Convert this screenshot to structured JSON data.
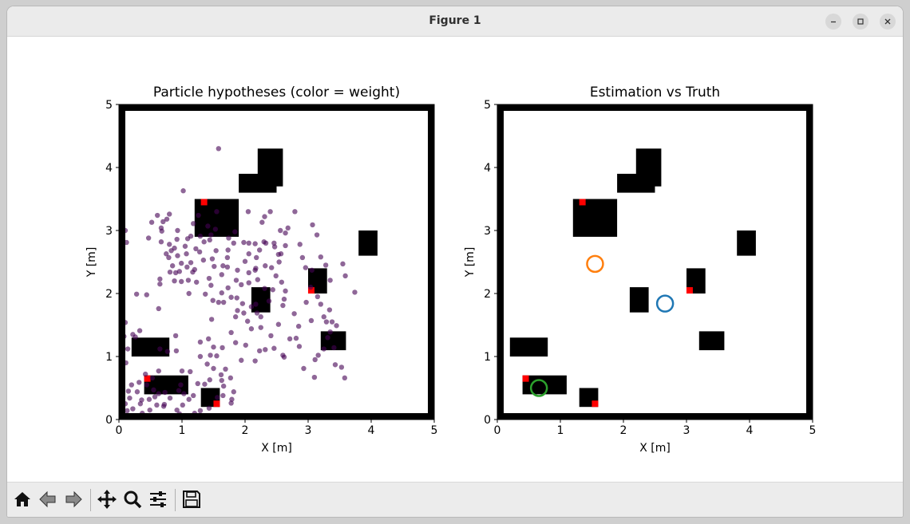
{
  "window": {
    "title": "Figure 1"
  },
  "toolbar": [
    {
      "name": "home-button",
      "icon": "home-icon"
    },
    {
      "name": "back-button",
      "icon": "back-arrow-icon"
    },
    {
      "name": "forward-button",
      "icon": "forward-arrow-icon"
    },
    {
      "name": "pan-button",
      "icon": "pan-arrows-icon"
    },
    {
      "name": "zoom-button",
      "icon": "magnifier-icon"
    },
    {
      "name": "configure-subplots-button",
      "icon": "sliders-icon"
    },
    {
      "name": "save-button",
      "icon": "floppy-disk-icon"
    }
  ],
  "colors": {
    "wall": "#000000",
    "landmark": "#ff0000",
    "particle": "#440154",
    "estimate": "#1f77b4",
    "alternate": "#ff7f0e",
    "truth": "#2ca02c"
  },
  "chart_data": [
    {
      "type": "scatter",
      "title": "Particle hypotheses (color = weight)",
      "xlabel": "X [m]",
      "ylabel": "Y [m]",
      "xlim": [
        0,
        5
      ],
      "ylim": [
        0,
        5
      ],
      "xticks": [
        "0",
        "1",
        "2",
        "3",
        "4",
        "5"
      ],
      "yticks": [
        "0",
        "1",
        "2",
        "3",
        "4",
        "5"
      ],
      "obstacles": [
        {
          "x0": 2.2,
          "x1": 2.6,
          "y0": 3.7,
          "y1": 4.3
        },
        {
          "x0": 1.9,
          "x1": 2.5,
          "y0": 3.6,
          "y1": 3.9
        },
        {
          "x0": 1.2,
          "x1": 1.9,
          "y0": 2.9,
          "y1": 3.5
        },
        {
          "x0": 3.8,
          "x1": 4.1,
          "y0": 2.6,
          "y1": 3.0
        },
        {
          "x0": 3.0,
          "x1": 3.3,
          "y0": 2.0,
          "y1": 2.4
        },
        {
          "x0": 2.1,
          "x1": 2.4,
          "y0": 1.7,
          "y1": 2.1
        },
        {
          "x0": 3.2,
          "x1": 3.6,
          "y0": 1.1,
          "y1": 1.4
        },
        {
          "x0": 0.2,
          "x1": 0.8,
          "y0": 1.0,
          "y1": 1.3
        },
        {
          "x0": 0.4,
          "x1": 1.1,
          "y0": 0.4,
          "y1": 0.7
        },
        {
          "x0": 1.3,
          "x1": 1.6,
          "y0": 0.2,
          "y1": 0.5
        }
      ],
      "landmarks": [
        {
          "x": 1.35,
          "y": 3.45
        },
        {
          "x": 3.05,
          "y": 2.05
        },
        {
          "x": 0.45,
          "y": 0.65
        },
        {
          "x": 1.55,
          "y": 0.25
        }
      ],
      "particles": [
        [
          1.58,
          4.3
        ],
        [
          1.53,
          3.02
        ],
        [
          0.47,
          2.88
        ],
        [
          1.14,
          2.91
        ],
        [
          0.61,
          3.24
        ],
        [
          1.18,
          3.11
        ],
        [
          0.52,
          3.13
        ],
        [
          0.67,
          3.04
        ],
        [
          0.1,
          3.0
        ],
        [
          0.12,
          2.81
        ],
        [
          0.68,
          2.99
        ],
        [
          0.7,
          3.14
        ],
        [
          0.76,
          3.18
        ],
        [
          0.8,
          3.26
        ],
        [
          1.02,
          3.63
        ],
        [
          1.55,
          3.3
        ],
        [
          1.26,
          3.24
        ],
        [
          2.27,
          3.13
        ],
        [
          2.56,
          3.0
        ],
        [
          2.68,
          3.04
        ],
        [
          2.31,
          3.22
        ],
        [
          2.4,
          3.3
        ],
        [
          2.79,
          3.3
        ],
        [
          2.64,
          2.96
        ],
        [
          3.07,
          3.09
        ],
        [
          3.14,
          2.93
        ],
        [
          1.82,
          2.8
        ],
        [
          1.98,
          2.81
        ],
        [
          2.06,
          2.8
        ],
        [
          2.3,
          2.82
        ],
        [
          2.46,
          2.8
        ],
        [
          2.87,
          2.78
        ],
        [
          3.55,
          2.47
        ],
        [
          1.74,
          2.88
        ],
        [
          1.46,
          2.93
        ],
        [
          1.35,
          2.82
        ],
        [
          1.29,
          2.91
        ],
        [
          1.09,
          2.87
        ],
        [
          1.05,
          2.75
        ],
        [
          0.92,
          2.86
        ],
        [
          0.8,
          2.78
        ],
        [
          0.67,
          2.82
        ],
        [
          1.07,
          2.63
        ],
        [
          1.14,
          2.49
        ],
        [
          1.08,
          2.42
        ],
        [
          1.17,
          2.34
        ],
        [
          1.28,
          2.66
        ],
        [
          1.48,
          2.55
        ],
        [
          1.51,
          2.43
        ],
        [
          1.63,
          2.3
        ],
        [
          1.72,
          2.42
        ],
        [
          1.88,
          2.37
        ],
        [
          1.86,
          2.21
        ],
        [
          1.73,
          2.09
        ],
        [
          1.63,
          2.01
        ],
        [
          1.43,
          2.24
        ],
        [
          1.23,
          2.18
        ],
        [
          1.1,
          2.21
        ],
        [
          0.88,
          2.2
        ],
        [
          0.81,
          2.34
        ],
        [
          0.65,
          2.23
        ],
        [
          0.79,
          2.57
        ],
        [
          0.83,
          2.68
        ],
        [
          0.93,
          2.6
        ],
        [
          0.99,
          2.48
        ],
        [
          0.96,
          2.35
        ],
        [
          0.99,
          2.19
        ],
        [
          1.11,
          2.0
        ],
        [
          1.37,
          1.99
        ],
        [
          1.49,
          1.89
        ],
        [
          1.58,
          1.86
        ],
        [
          1.66,
          1.86
        ],
        [
          1.78,
          1.94
        ],
        [
          1.87,
          1.93
        ],
        [
          1.96,
          1.84
        ],
        [
          1.88,
          1.73
        ],
        [
          1.85,
          1.63
        ],
        [
          1.78,
          1.38
        ],
        [
          1.98,
          1.69
        ],
        [
          2.1,
          1.79
        ],
        [
          2.17,
          1.83
        ],
        [
          2.19,
          1.69
        ],
        [
          2.04,
          1.56
        ],
        [
          2.25,
          1.63
        ],
        [
          2.38,
          1.88
        ],
        [
          2.44,
          2.06
        ],
        [
          2.58,
          2.18
        ],
        [
          2.64,
          2.04
        ],
        [
          2.62,
          1.91
        ],
        [
          2.31,
          2.08
        ],
        [
          2.2,
          2.22
        ],
        [
          2.16,
          2.37
        ],
        [
          2.06,
          2.33
        ],
        [
          2.0,
          2.51
        ],
        [
          2.06,
          2.63
        ],
        [
          2.18,
          2.57
        ],
        [
          2.17,
          2.4
        ],
        [
          2.32,
          2.44
        ],
        [
          2.42,
          2.41
        ],
        [
          2.49,
          2.28
        ],
        [
          2.54,
          2.5
        ],
        [
          2.57,
          2.63
        ],
        [
          2.64,
          2.76
        ],
        [
          2.53,
          2.62
        ],
        [
          2.47,
          2.74
        ],
        [
          2.33,
          2.8
        ],
        [
          2.23,
          2.69
        ],
        [
          2.16,
          2.79
        ],
        [
          2.91,
          2.57
        ],
        [
          2.96,
          2.41
        ],
        [
          3.06,
          2.37
        ],
        [
          3.28,
          2.45
        ],
        [
          3.35,
          2.21
        ],
        [
          3.15,
          1.95
        ],
        [
          3.2,
          1.83
        ],
        [
          3.34,
          1.74
        ],
        [
          3.25,
          1.63
        ],
        [
          3.29,
          1.55
        ],
        [
          3.38,
          1.55
        ],
        [
          3.45,
          1.49
        ],
        [
          3.35,
          1.39
        ],
        [
          3.31,
          1.3
        ],
        [
          3.41,
          1.14
        ],
        [
          3.25,
          1.12
        ],
        [
          3.16,
          1.02
        ],
        [
          3.11,
          0.95
        ],
        [
          3.43,
          0.87
        ],
        [
          3.53,
          0.83
        ],
        [
          3.58,
          0.66
        ],
        [
          3.1,
          0.67
        ],
        [
          2.93,
          0.81
        ],
        [
          2.86,
          1.16
        ],
        [
          2.81,
          1.29
        ],
        [
          2.71,
          1.28
        ],
        [
          2.85,
          1.48
        ],
        [
          3.05,
          1.57
        ],
        [
          2.97,
          1.86
        ],
        [
          2.78,
          1.68
        ],
        [
          2.6,
          1.81
        ],
        [
          2.53,
          1.51
        ],
        [
          2.41,
          1.33
        ],
        [
          2.25,
          1.46
        ],
        [
          2.1,
          1.44
        ],
        [
          2.01,
          1.18
        ],
        [
          2.23,
          1.09
        ],
        [
          2.32,
          1.11
        ],
        [
          2.46,
          1.13
        ],
        [
          2.6,
          1.02
        ],
        [
          2.62,
          0.99
        ],
        [
          2.16,
          0.93
        ],
        [
          1.94,
          0.94
        ],
        [
          1.85,
          1.22
        ],
        [
          1.64,
          1.14
        ],
        [
          1.5,
          1.15
        ],
        [
          1.42,
          1.28
        ],
        [
          1.29,
          1.23
        ],
        [
          1.29,
          1.0
        ],
        [
          1.4,
          0.88
        ],
        [
          1.5,
          0.81
        ],
        [
          1.62,
          0.71
        ],
        [
          1.77,
          0.66
        ],
        [
          1.82,
          0.44
        ],
        [
          1.66,
          0.53
        ],
        [
          1.65,
          0.38
        ],
        [
          1.79,
          0.32
        ],
        [
          1.44,
          0.63
        ],
        [
          1.25,
          0.57
        ],
        [
          1.13,
          0.76
        ],
        [
          1.0,
          0.77
        ],
        [
          0.91,
          1.09
        ],
        [
          0.77,
          1.08
        ],
        [
          0.65,
          1.12
        ],
        [
          0.63,
          0.77
        ],
        [
          0.53,
          0.66
        ],
        [
          0.42,
          0.72
        ],
        [
          0.32,
          0.59
        ],
        [
          0.29,
          0.44
        ],
        [
          0.36,
          0.31
        ],
        [
          0.48,
          0.32
        ],
        [
          0.57,
          0.36
        ],
        [
          0.63,
          0.41
        ],
        [
          0.73,
          0.43
        ],
        [
          0.81,
          0.34
        ],
        [
          0.72,
          0.24
        ],
        [
          0.6,
          0.23
        ],
        [
          0.49,
          0.15
        ],
        [
          0.37,
          0.1
        ],
        [
          0.22,
          0.17
        ],
        [
          0.13,
          0.14
        ],
        [
          0.1,
          0.25
        ],
        [
          0.17,
          0.34
        ],
        [
          0.15,
          0.45
        ],
        [
          0.2,
          0.55
        ],
        [
          0.11,
          0.9
        ],
        [
          0.14,
          1.12
        ],
        [
          0.26,
          1.31
        ],
        [
          0.33,
          1.41
        ],
        [
          0.22,
          1.35
        ],
        [
          0.08,
          1.32
        ],
        [
          0.1,
          1.54
        ],
        [
          0.06,
          1.7
        ],
        [
          0.63,
          1.76
        ],
        [
          0.9,
          1.33
        ],
        [
          0.98,
          0.55
        ],
        [
          1.03,
          0.41
        ],
        [
          1.11,
          0.32
        ],
        [
          1.01,
          0.23
        ],
        [
          0.92,
          0.15
        ],
        [
          0.96,
          0.09
        ],
        [
          1.05,
          0.05
        ],
        [
          0.82,
          0.06
        ],
        [
          0.67,
          0.06
        ],
        [
          0.55,
          0.05
        ],
        [
          0.43,
          0.05
        ],
        [
          0.29,
          0.06
        ],
        [
          0.18,
          0.06
        ],
        [
          0.06,
          0.06
        ],
        [
          1.2,
          0.1
        ],
        [
          1.29,
          0.14
        ],
        [
          1.43,
          0.18
        ],
        [
          1.56,
          0.35
        ],
        [
          1.78,
          0.26
        ],
        [
          0.71,
          0.21
        ],
        [
          1.69,
          0.8
        ],
        [
          1.63,
          0.62
        ],
        [
          1.36,
          0.56
        ],
        [
          1.18,
          0.38
        ],
        [
          1.45,
          1.02
        ],
        [
          1.55,
          1.01
        ],
        [
          1.47,
          1.59
        ],
        [
          0.65,
          2.15
        ],
        [
          0.85,
          2.44
        ],
        [
          0.9,
          2.33
        ],
        [
          1.22,
          2.71
        ],
        [
          1.44,
          2.85
        ],
        [
          1.72,
          2.57
        ],
        [
          1.73,
          2.69
        ],
        [
          1.94,
          2.14
        ],
        [
          2.06,
          2.17
        ],
        [
          1.65,
          2.44
        ],
        [
          1.46,
          2.13
        ],
        [
          1.2,
          2.38
        ],
        [
          1.34,
          2.53
        ],
        [
          1.54,
          2.68
        ],
        [
          1.84,
          2.98
        ],
        [
          2.05,
          3.3
        ],
        [
          1.41,
          3.07
        ],
        [
          0.93,
          3.0
        ],
        [
          0.88,
          2.72
        ],
        [
          0.75,
          2.63
        ],
        [
          0.44,
          1.98
        ],
        [
          0.28,
          1.99
        ],
        [
          0.55,
          0.47
        ],
        [
          0.44,
          0.55
        ],
        [
          0.34,
          0.25
        ],
        [
          0.95,
          0.46
        ],
        [
          3.74,
          2.02
        ],
        [
          3.2,
          2.58
        ],
        [
          3.04,
          2.1
        ],
        [
          3.59,
          2.28
        ]
      ]
    },
    {
      "type": "scatter",
      "title": "Estimation vs Truth",
      "xlabel": "X [m]",
      "ylabel": "Y [m]",
      "xlim": [
        0,
        5
      ],
      "ylim": [
        0,
        5
      ],
      "xticks": [
        "0",
        "1",
        "2",
        "3",
        "4",
        "5"
      ],
      "yticks": [
        "0",
        "1",
        "2",
        "3",
        "4",
        "5"
      ],
      "obstacles": [
        {
          "x0": 2.2,
          "x1": 2.6,
          "y0": 3.7,
          "y1": 4.3
        },
        {
          "x0": 1.9,
          "x1": 2.5,
          "y0": 3.6,
          "y1": 3.9
        },
        {
          "x0": 1.2,
          "x1": 1.9,
          "y0": 2.9,
          "y1": 3.5
        },
        {
          "x0": 3.8,
          "x1": 4.1,
          "y0": 2.6,
          "y1": 3.0
        },
        {
          "x0": 3.0,
          "x1": 3.3,
          "y0": 2.0,
          "y1": 2.4
        },
        {
          "x0": 2.1,
          "x1": 2.4,
          "y0": 1.7,
          "y1": 2.1
        },
        {
          "x0": 3.2,
          "x1": 3.6,
          "y0": 1.1,
          "y1": 1.4
        },
        {
          "x0": 0.2,
          "x1": 0.8,
          "y0": 1.0,
          "y1": 1.3
        },
        {
          "x0": 0.4,
          "x1": 1.1,
          "y0": 0.4,
          "y1": 0.7
        },
        {
          "x0": 1.3,
          "x1": 1.6,
          "y0": 0.2,
          "y1": 0.5
        }
      ],
      "landmarks": [
        {
          "x": 1.35,
          "y": 3.45
        },
        {
          "x": 3.05,
          "y": 2.05
        },
        {
          "x": 0.45,
          "y": 0.65
        },
        {
          "x": 1.55,
          "y": 0.25
        }
      ],
      "markers": [
        {
          "kind": "estimate",
          "x": 2.66,
          "y": 1.84
        },
        {
          "kind": "alternate",
          "x": 1.55,
          "y": 2.47
        },
        {
          "kind": "truth",
          "x": 0.66,
          "y": 0.5
        }
      ]
    }
  ]
}
